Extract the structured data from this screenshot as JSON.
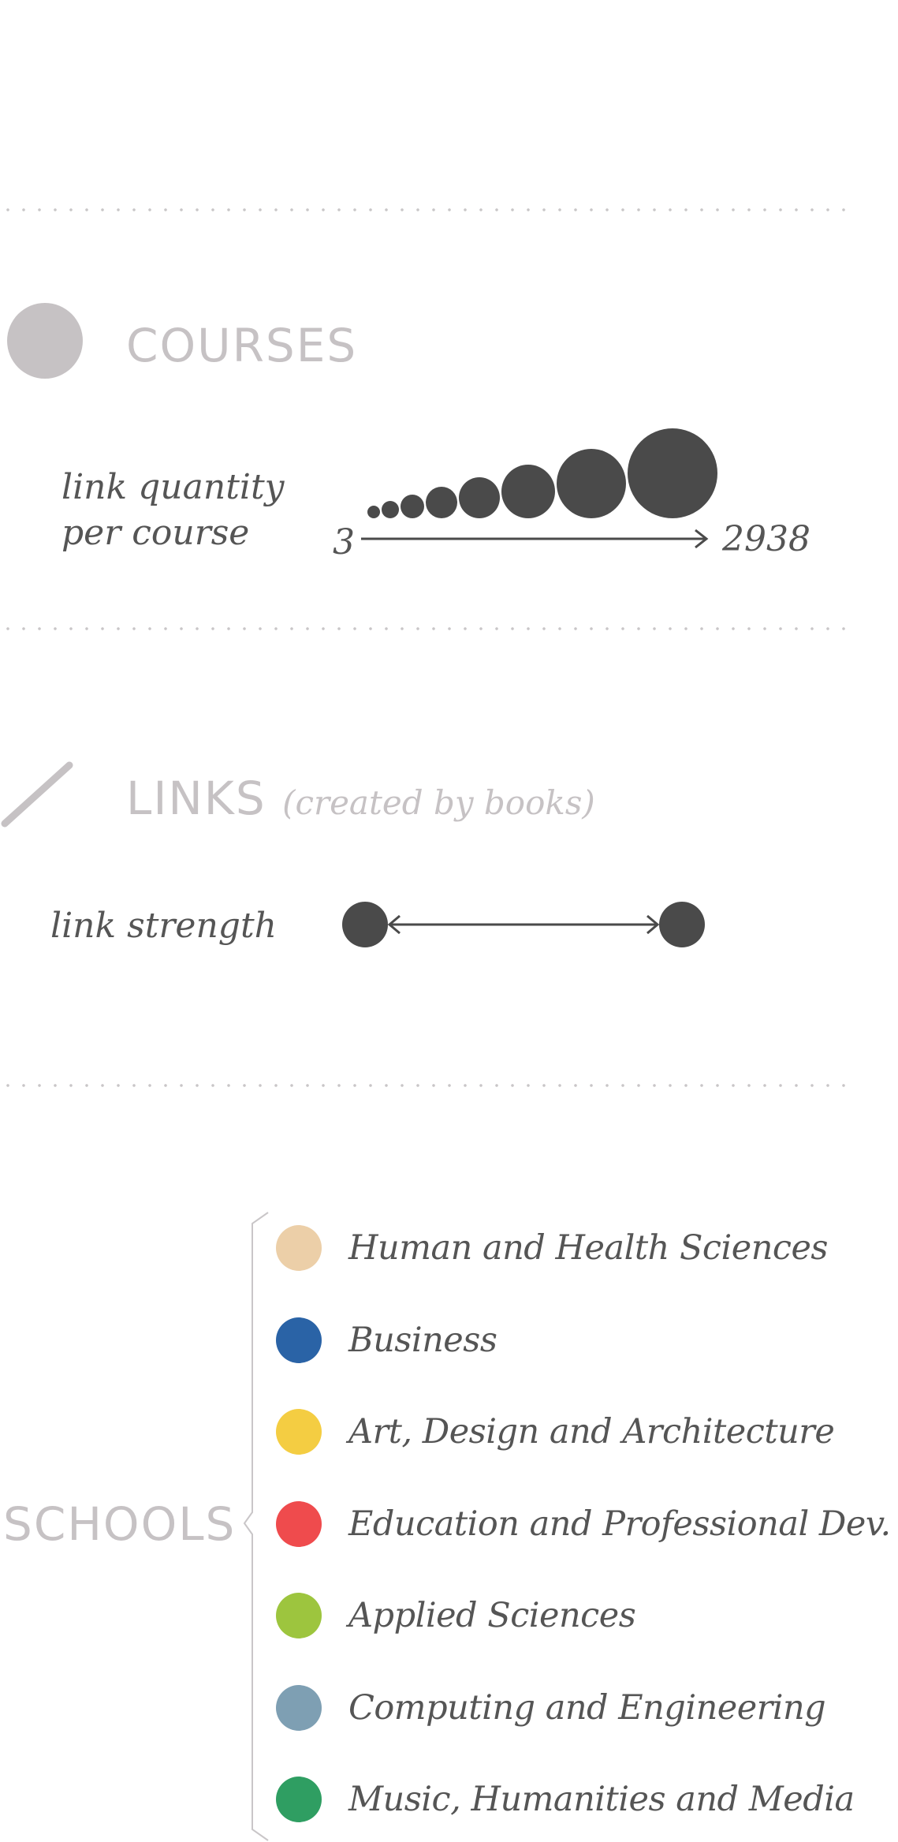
{
  "courses": {
    "heading": "COURSES",
    "legend_label_line1": "link quantity",
    "legend_label_line2": "per course",
    "scale_min": "3",
    "scale_max": "2938",
    "icon_color": "#c6c2c4",
    "mark_color": "#4a4a4a"
  },
  "links": {
    "heading": "LINKS",
    "subheading": "(created by books)",
    "legend_label": "link strength",
    "icon_color": "#c6c2c4",
    "mark_color": "#4a4a4a"
  },
  "schools": {
    "heading": "SCHOOLS",
    "items": [
      {
        "label": "Human and Health Sciences",
        "color": "#eccfa8"
      },
      {
        "label": "Business",
        "color": "#2a63a6"
      },
      {
        "label": "Art, Design and Architecture",
        "color": "#f4cd42"
      },
      {
        "label": "Education and Professional Dev.",
        "color": "#ef4b4d"
      },
      {
        "label": "Applied Sciences",
        "color": "#9dc53e"
      },
      {
        "label": "Computing and Engineering",
        "color": "#7e9fb3"
      },
      {
        "label": "Music, Humanities and Media",
        "color": "#2f9e62"
      }
    ]
  }
}
